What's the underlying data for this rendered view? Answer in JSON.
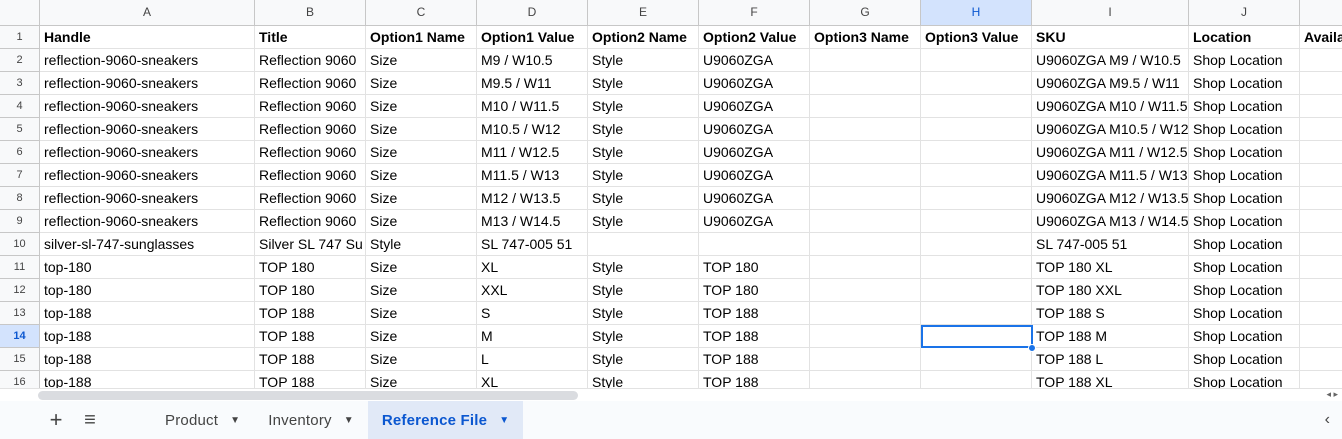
{
  "columns": [
    "A",
    "B",
    "C",
    "D",
    "E",
    "F",
    "G",
    "H",
    "I",
    "J",
    ""
  ],
  "selected_column": "H",
  "selected_row": 14,
  "rows": [
    [
      "Handle",
      "Title",
      "Option1 Name",
      "Option1 Value",
      "Option2 Name",
      "Option2 Value",
      "Option3 Name",
      "Option3 Value",
      "SKU",
      "Location",
      "Available"
    ],
    [
      "reflection-9060-sneakers",
      "Reflection 9060",
      "Size",
      "M9 / W10.5",
      "Style",
      "U9060ZGA",
      "",
      "",
      "U9060ZGA M9 / W10.5",
      "Shop Location",
      ""
    ],
    [
      "reflection-9060-sneakers",
      "Reflection 9060",
      "Size",
      "M9.5 / W11",
      "Style",
      "U9060ZGA",
      "",
      "",
      "U9060ZGA M9.5 / W11",
      "Shop Location",
      ""
    ],
    [
      "reflection-9060-sneakers",
      "Reflection 9060",
      "Size",
      "M10 / W11.5",
      "Style",
      "U9060ZGA",
      "",
      "",
      "U9060ZGA M10 / W11.5",
      "Shop Location",
      ""
    ],
    [
      "reflection-9060-sneakers",
      "Reflection 9060",
      "Size",
      "M10.5 / W12",
      "Style",
      "U9060ZGA",
      "",
      "",
      "U9060ZGA M10.5 / W12",
      "Shop Location",
      ""
    ],
    [
      "reflection-9060-sneakers",
      "Reflection 9060",
      "Size",
      "M11 / W12.5",
      "Style",
      "U9060ZGA",
      "",
      "",
      "U9060ZGA M11 / W12.5",
      "Shop Location",
      ""
    ],
    [
      "reflection-9060-sneakers",
      "Reflection 9060",
      "Size",
      "M11.5 / W13",
      "Style",
      "U9060ZGA",
      "",
      "",
      "U9060ZGA M11.5 / W13",
      "Shop Location",
      ""
    ],
    [
      "reflection-9060-sneakers",
      "Reflection 9060",
      "Size",
      "M12 / W13.5",
      "Style",
      "U9060ZGA",
      "",
      "",
      "U9060ZGA M12 / W13.5",
      "Shop Location",
      ""
    ],
    [
      "reflection-9060-sneakers",
      "Reflection 9060",
      "Size",
      "M13 / W14.5",
      "Style",
      "U9060ZGA",
      "",
      "",
      "U9060ZGA M13 / W14.5",
      "Shop Location",
      ""
    ],
    [
      "silver-sl-747-sunglasses",
      "Silver SL 747 Su",
      "Style",
      "SL 747-005 51",
      "",
      "",
      "",
      "",
      "SL 747-005 51",
      "Shop Location",
      ""
    ],
    [
      "top-180",
      "TOP 180",
      "Size",
      "XL",
      "Style",
      "TOP 180",
      "",
      "",
      "TOP 180 XL",
      "Shop Location",
      ""
    ],
    [
      "top-180",
      "TOP 180",
      "Size",
      "XXL",
      "Style",
      "TOP 180",
      "",
      "",
      "TOP 180 XXL",
      "Shop Location",
      ""
    ],
    [
      "top-188",
      "TOP 188",
      "Size",
      "S",
      "Style",
      "TOP 188",
      "",
      "",
      "TOP 188 S",
      "Shop Location",
      ""
    ],
    [
      "top-188",
      "TOP 188",
      "Size",
      "M",
      "Style",
      "TOP 188",
      "",
      "",
      "TOP 188 M",
      "Shop Location",
      ""
    ],
    [
      "top-188",
      "TOP 188",
      "Size",
      "L",
      "Style",
      "TOP 188",
      "",
      "",
      "TOP 188 L",
      "Shop Location",
      ""
    ],
    [
      "top-188",
      "TOP 188",
      "Size",
      "XL",
      "Style",
      "TOP 188",
      "",
      "",
      "TOP 188 XL",
      "Shop Location",
      ""
    ]
  ],
  "tabs": {
    "add": "+",
    "menu": "≡",
    "items": [
      {
        "label": "Product"
      },
      {
        "label": "Inventory"
      },
      {
        "label": "Reference File",
        "active": true
      }
    ],
    "caret": "▼",
    "collapse": "‹"
  },
  "scroll_arrows": "◂ ▸"
}
